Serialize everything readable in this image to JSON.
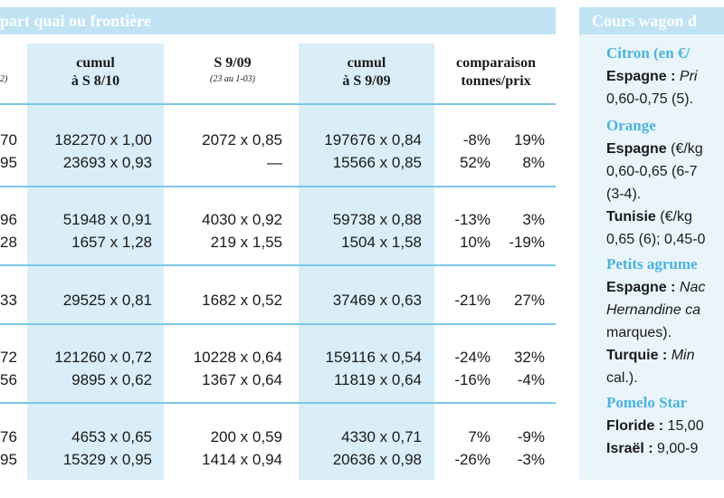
{
  "left_title": "part quai ou frontière",
  "right_title": "Cours wagon d",
  "columns": {
    "frag": "2)",
    "cumul1": [
      "cumul",
      "à S 8/10"
    ],
    "s909": "S 9/09",
    "s909_sub": "(23 au 1-03)",
    "cumul2": [
      "cumul",
      "à S 9/09"
    ],
    "comparaison": [
      "comparaison",
      "tonnes/prix"
    ]
  },
  "rows": [
    {
      "frag": "70",
      "cumul1": "182270 x 1,00",
      "s909": "2072 x 0,85",
      "cumul2": "197676 x 0,84",
      "tonnes": "-8%",
      "prix": "19%"
    },
    {
      "frag": "95",
      "cumul1": "23693 x 0,93",
      "s909": "—",
      "cumul2": "15566 x 0,85",
      "tonnes": "52%",
      "prix": "8%"
    },
    {
      "frag": "96",
      "cumul1": "51948 x 0,91",
      "s909": "4030 x 0,92",
      "cumul2": "59738 x 0,88",
      "tonnes": "-13%",
      "prix": "3%"
    },
    {
      "frag": "28",
      "cumul1": "1657 x 1,28",
      "s909": "219 x 1,55",
      "cumul2": "1504 x 1,58",
      "tonnes": "10%",
      "prix": "-19%"
    },
    {
      "frag": "33",
      "cumul1": "29525 x 0,81",
      "s909": "1682 x 0,52",
      "cumul2": "37469 x 0,63",
      "tonnes": "-21%",
      "prix": "27%"
    },
    {
      "frag": "72",
      "cumul1": "121260 x 0,72",
      "s909": "10228 x 0,64",
      "cumul2": "159116 x 0,54",
      "tonnes": "-24%",
      "prix": "32%"
    },
    {
      "frag": "56",
      "cumul1": "9895 x 0,62",
      "s909": "1367 x 0,64",
      "cumul2": "11819 x 0,64",
      "tonnes": "-16%",
      "prix": "-4%"
    },
    {
      "frag": "76",
      "cumul1": "4653 x 0,65",
      "s909": "200 x 0,59",
      "cumul2": "4330 x 0,71",
      "tonnes": "7%",
      "prix": "-9%"
    },
    {
      "frag": "95",
      "cumul1": "15329 x 0,95",
      "s909": "1414 x 0,94",
      "cumul2": "20636 x 0,98",
      "tonnes": "-26%",
      "prix": "-3%"
    }
  ],
  "side": {
    "citron": "Citron (en €/",
    "espagne1_label": "Espagne :",
    "espagne1_text": "Pri",
    "espagne1_line2": "0,60-0,75 (5).",
    "orange": "Orange",
    "espagne2_label": "Espagne",
    "espagne2_text": " (€/kg",
    "espagne2_line2": "0,60-0,65  (6-7",
    "espagne2_line3": "(3-4).",
    "tunisie_label": "Tunisie",
    "tunisie_text": " (€/kg",
    "tunisie_line2": "0,65 (6); 0,45-0",
    "petits": "Petits agrume",
    "espagne3_label": "Espagne :",
    "espagne3_text": " Nac",
    "espagne3_line2": "Hernandine ca",
    "espagne3_line3": "marques).",
    "turquie_label": "Turquie :",
    "turquie_text": "  Min",
    "turquie_line2": "cal.).",
    "pomelo": "Pomelo Star",
    "floride_label": "Floride :",
    "floride_text": " 15,00",
    "israel_label": "Israël :",
    "israel_text": " 9,00-9"
  }
}
